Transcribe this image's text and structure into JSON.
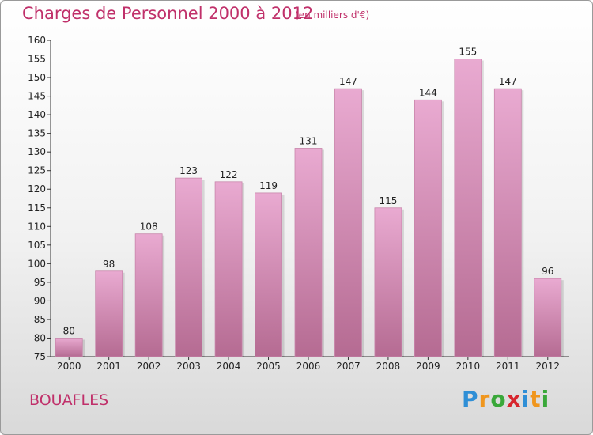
{
  "title": "Charges de Personnel 2000 à 2012",
  "subtitle": "(en milliers d'€)",
  "commune": "BOUAFLES",
  "logo": {
    "text": "Proxiti",
    "letters": [
      "P",
      "r",
      "o",
      "x",
      "i",
      "t",
      "i"
    ],
    "colors": [
      "#2f8fd6",
      "#f0961d",
      "#3aa83a",
      "#d7262e",
      "#2f8fd6",
      "#f0961d",
      "#3aa83a"
    ]
  },
  "colors": {
    "accent": "#c0306a",
    "bar_top": "#e9aad1",
    "bar_bottom": "#b56b92"
  },
  "chart_data": {
    "type": "bar",
    "title": "Charges de Personnel 2000 à 2012",
    "subtitle": "(en milliers d'€)",
    "xlabel": "",
    "ylabel": "",
    "categories": [
      "2000",
      "2001",
      "2002",
      "2003",
      "2004",
      "2005",
      "2006",
      "2007",
      "2008",
      "2009",
      "2010",
      "2011",
      "2012"
    ],
    "values": [
      80,
      98,
      108,
      123,
      122,
      119,
      131,
      147,
      115,
      144,
      155,
      147,
      96
    ],
    "ylim": [
      75,
      160
    ],
    "yticks": [
      75,
      80,
      85,
      90,
      95,
      100,
      105,
      110,
      115,
      120,
      125,
      130,
      135,
      140,
      145,
      150,
      155,
      160
    ],
    "grid": false,
    "legend": "none"
  }
}
